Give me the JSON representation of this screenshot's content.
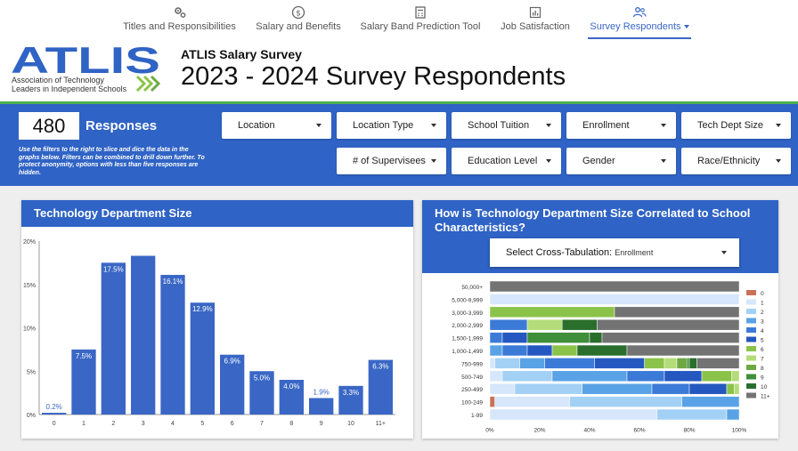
{
  "nav": {
    "tabs": [
      {
        "label": "Titles and Responsibilities",
        "icon": "gears-icon"
      },
      {
        "label": "Salary and Benefits",
        "icon": "dollar-icon"
      },
      {
        "label": "Salary Band Prediction Tool",
        "icon": "calculator-icon"
      },
      {
        "label": "Job Satisfaction",
        "icon": "bar-chart-icon"
      },
      {
        "label": "Survey Respondents",
        "icon": "people-icon",
        "active": true
      }
    ]
  },
  "header": {
    "logo": {
      "text": "ATLIS",
      "line1": "Association of Technology",
      "line2": "Leaders in Independent Schools"
    },
    "subtitle": "ATLIS Salary Survey",
    "title": "2023 - 2024 Survey Respondents"
  },
  "summary": {
    "count": "480",
    "count_label": "Responses",
    "note": "Use the filters to the right to slice and dice the data in the graphs below. Filters can be combined to drill down further. To protect anonymity, options with less than five responses are hidden."
  },
  "filters": [
    "Location",
    "Location Type",
    "School Tuition",
    "Enrollment",
    "Tech Dept Size",
    "# of Supervisees",
    "Education Level",
    "Gender",
    "Race/Ethnicity"
  ],
  "panel1": {
    "title": "Technology Department Size"
  },
  "panel2": {
    "title_line1": "How is Technology Department Size Correlated to School",
    "title_line2": "Characteristics?",
    "select_label": "Select Cross-Tabulation:",
    "select_value": "Enrollment"
  },
  "colors": {
    "brand_blue": "#2f63c5",
    "bar_blue": "#3a67c5",
    "accent_green": "#4caf50"
  },
  "chart_data": [
    {
      "type": "bar",
      "title": "Technology Department Size",
      "categories": [
        "0",
        "1",
        "2",
        "3",
        "4",
        "5",
        "6",
        "7",
        "8",
        "9",
        "10",
        "11+"
      ],
      "values": [
        0.2,
        7.5,
        17.5,
        18.3,
        16.1,
        12.9,
        6.9,
        5.0,
        4.0,
        1.9,
        3.3,
        6.3
      ],
      "labels": [
        "0.2%",
        "7.5%",
        "17.5%",
        "",
        "16.1%",
        "12.9%",
        "6.9%",
        "5.0%",
        "4.0%",
        "1.9%",
        "3.3%",
        "6.3%"
      ],
      "yticks": [
        "0%",
        "5%",
        "10%",
        "15%",
        "20%"
      ],
      "ylim": [
        0,
        20
      ],
      "grid": false
    },
    {
      "type": "bar",
      "orientation": "horizontal-stacked-100",
      "title": "How is Technology Department Size Correlated to School Characteristics?",
      "categories": [
        "50,000+",
        "5,000-9,999",
        "3,000-3,999",
        "2,000-2,999",
        "1,500-1,999",
        "1,000-1,499",
        "750-999",
        "500-749",
        "250-499",
        "100-249",
        "1-99"
      ],
      "xticks": [
        "0%",
        "20%",
        "40%",
        "60%",
        "80%",
        "100%"
      ],
      "legend": {
        "position": "right",
        "items": [
          "0",
          "1",
          "2",
          "3",
          "4",
          "5",
          "6",
          "7",
          "8",
          "9",
          "10",
          "11+"
        ]
      },
      "legend_colors": [
        "#c8725a",
        "#d6e6fb",
        "#a3d1f5",
        "#5aa2e6",
        "#3c7ad8",
        "#2457c0",
        "#8bc34a",
        "#b4dc7a",
        "#6ea843",
        "#3f8e3a",
        "#2a6e2c",
        "#737373"
      ],
      "rows": [
        [
          0,
          0,
          0,
          0,
          0,
          0,
          0,
          0,
          0,
          0,
          0,
          100
        ],
        [
          0,
          100,
          0,
          0,
          0,
          0,
          0,
          0,
          0,
          0,
          0,
          0
        ],
        [
          0,
          0,
          0,
          0,
          0,
          0,
          50,
          0,
          0,
          0,
          0,
          50
        ],
        [
          0,
          0,
          0,
          0,
          15,
          0,
          0,
          14,
          0,
          0,
          14,
          57
        ],
        [
          0,
          0,
          0,
          0,
          5,
          10,
          0,
          0,
          0,
          25,
          5,
          55
        ],
        [
          0,
          0,
          0,
          5,
          10,
          10,
          10,
          0,
          0,
          0,
          20,
          45
        ],
        [
          0,
          2,
          10,
          10,
          20,
          20,
          8,
          5,
          4,
          1,
          3,
          17
        ],
        [
          0,
          5,
          20,
          30,
          15,
          15,
          12,
          3,
          0,
          0,
          0,
          0
        ],
        [
          0,
          10,
          27,
          28,
          15,
          15,
          3,
          2,
          0,
          0,
          0,
          0
        ],
        [
          2,
          30,
          45,
          23,
          0,
          0,
          0,
          0,
          0,
          0,
          0,
          0
        ],
        [
          0,
          67,
          28,
          5,
          0,
          0,
          0,
          0,
          0,
          0,
          0,
          0
        ]
      ]
    }
  ]
}
